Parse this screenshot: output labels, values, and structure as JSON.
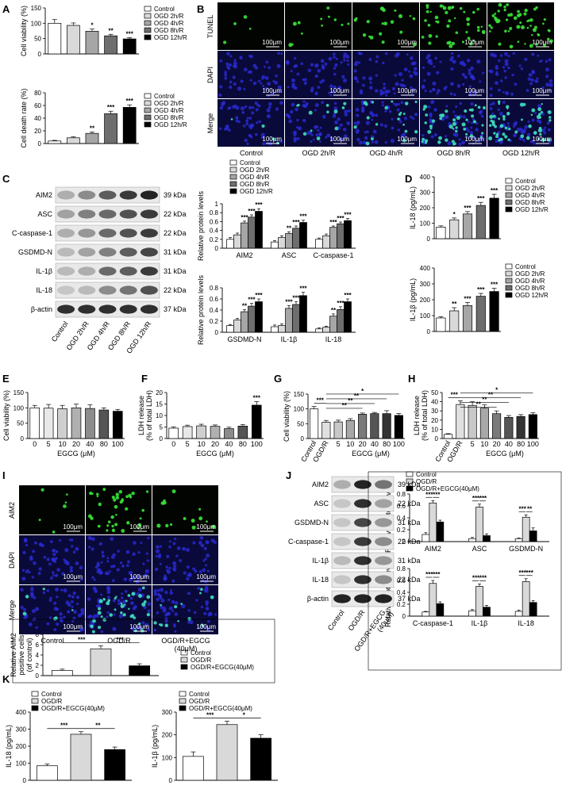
{
  "legend_groups": {
    "ogd5": [
      "Control",
      "OGD 2h/R",
      "OGD 4h/R",
      "OGD 8h/R",
      "OGD 12h/R"
    ],
    "ogd5b": [
      "Control",
      "OGD 2h/R",
      "OGD 4h/R",
      "OGD 8h/R",
      "OGD 12h/R"
    ],
    "ogd5c": [
      "Control",
      "OGD 2h/R",
      "OGD 4h/R",
      "OGD 8h/R",
      "OGD 12h/R"
    ],
    "ogd5d": [
      "Control",
      "OGD 2h/R",
      "OGD 4h/R",
      "OGD 8h/R",
      "OGD 12h/R"
    ],
    "egcg3": [
      "Control",
      "OGD/R",
      "OGD/R+EGCG(40µM)"
    ]
  },
  "colors": {
    "c0": "#ffffff",
    "c1": "#d9d9d9",
    "c2": "#a6a6a6",
    "c3": "#6e6e6e",
    "c4": "#000000",
    "fluor_green": "#39e639",
    "dapi_blue": "#2a2ad8"
  },
  "panel_B": {
    "row_labels": [
      "TUNEL",
      "DAPI",
      "Merge"
    ],
    "col_labels": [
      "Control",
      "OGD 2h/R",
      "OGD 4h/R",
      "OGD 8h/R",
      "OGD 12h/R"
    ],
    "scale": "100μm"
  },
  "panel_I": {
    "row_labels": [
      "AIM2",
      "DAPI",
      "Merge"
    ],
    "col_labels": [
      "Control",
      "OGD/R",
      "OGD/R+EGCG",
      "(40μM)"
    ],
    "scale": "100μm"
  },
  "panel_C": {
    "bands": [
      "AIM2",
      "ASC",
      "C-caspase-1",
      "GSDMD-N",
      "IL-1β",
      "IL-18",
      "β-actin"
    ],
    "kda": [
      "39 kDa",
      "22 kDa",
      "22 kDa",
      "31 kDa",
      "31 kDa",
      "22 kDa",
      "37 kDa"
    ],
    "lanes": [
      "Control",
      "OGD 2h/R",
      "OGD 4h/R",
      "OGD 8h/R",
      "OGD 12h/R"
    ]
  },
  "panel_J": {
    "bands": [
      "AIM2",
      "ASC",
      "GSDMD-N",
      "C-caspase-1",
      "IL-1β",
      "IL-18",
      "β-actin"
    ],
    "kda": [
      "39 kDa",
      "22 kDa",
      "31 kDa",
      "22 kDa",
      "31 kDa",
      "22 kDa",
      "37 kDa"
    ],
    "lanes": [
      "Control",
      "OGD/R",
      "OGD/R+EGCG",
      "(40μM)"
    ]
  },
  "chart_data": [
    {
      "id": "A1",
      "panel": "A",
      "type": "bar",
      "ylabel": "Cell viability (%)",
      "ylim": [
        0,
        150
      ],
      "yticks": [
        0,
        50,
        100,
        150
      ],
      "values": [
        100,
        93,
        74,
        59,
        49
      ],
      "errors": [
        12,
        8,
        7,
        5,
        4
      ],
      "sig": [
        "",
        "",
        "*",
        "**",
        "***"
      ],
      "legend": "ogd5"
    },
    {
      "id": "A2",
      "panel": "",
      "type": "bar",
      "ylabel": "Cell death rate (%)",
      "ylim": [
        0,
        80
      ],
      "yticks": [
        0,
        20,
        40,
        60,
        80
      ],
      "values": [
        4,
        9,
        16,
        47,
        57
      ],
      "errors": [
        1,
        1.5,
        2,
        4,
        4
      ],
      "sig": [
        "",
        "",
        "**",
        "***",
        "***"
      ],
      "legend": "ogd5b"
    },
    {
      "id": "C1",
      "panel": "",
      "type": "bar",
      "ylabel": "Relative protein levels",
      "ylim": [
        0,
        1.0
      ],
      "yticks": [
        0,
        0.2,
        0.4,
        0.6,
        0.8,
        1.0
      ],
      "groups": [
        "AIM2",
        "ASC",
        "C-caspase-1"
      ],
      "values": [
        [
          0.2,
          0.3,
          0.57,
          0.7,
          0.83
        ],
        [
          0.14,
          0.24,
          0.33,
          0.45,
          0.58
        ],
        [
          0.2,
          0.28,
          0.47,
          0.55,
          0.62
        ]
      ],
      "errors": [
        [
          0.04,
          0.04,
          0.04,
          0.05,
          0.06
        ],
        [
          0.03,
          0.04,
          0.04,
          0.05,
          0.05
        ],
        [
          0.03,
          0.04,
          0.03,
          0.04,
          0.05
        ]
      ],
      "sig": [
        [
          "",
          "",
          "***",
          "***",
          "***"
        ],
        [
          "",
          "",
          "**",
          "***",
          "***"
        ],
        [
          "",
          "",
          "***",
          "***",
          "***"
        ]
      ],
      "legend": "ogd5c"
    },
    {
      "id": "C2",
      "panel": "",
      "type": "bar",
      "ylabel": "Relative protein levels",
      "ylim": [
        0,
        0.8
      ],
      "yticks": [
        0,
        0.2,
        0.4,
        0.6,
        0.8
      ],
      "groups": [
        "GSDMD-N",
        "IL-1β",
        "IL-18"
      ],
      "values": [
        [
          0.12,
          0.22,
          0.37,
          0.47,
          0.55
        ],
        [
          0.1,
          0.12,
          0.43,
          0.5,
          0.66
        ],
        [
          0.06,
          0.09,
          0.29,
          0.41,
          0.55
        ]
      ],
      "errors": [
        [
          0.02,
          0.03,
          0.04,
          0.05,
          0.05
        ],
        [
          0.03,
          0.03,
          0.05,
          0.05,
          0.06
        ],
        [
          0.02,
          0.02,
          0.04,
          0.05,
          0.05
        ]
      ],
      "sig": [
        [
          "",
          "",
          "**",
          "***",
          "***"
        ],
        [
          "",
          "",
          "***",
          "***",
          "***"
        ],
        [
          "",
          "",
          "**",
          "***",
          "***"
        ]
      ]
    },
    {
      "id": "D1",
      "panel": "D",
      "type": "bar",
      "ylabel": "IL-18 (pg/mL)",
      "ylim": [
        0,
        400
      ],
      "yticks": [
        0,
        100,
        200,
        300,
        400
      ],
      "values": [
        75,
        122,
        160,
        215,
        262
      ],
      "errors": [
        8,
        12,
        15,
        20,
        25
      ],
      "sig": [
        "",
        "*",
        "***",
        "***",
        "***"
      ],
      "legend": "ogd5"
    },
    {
      "id": "D2",
      "panel": "",
      "type": "bar",
      "ylabel": "IL-1β (pg/mL)",
      "ylim": [
        0,
        400
      ],
      "yticks": [
        0,
        100,
        200,
        300,
        400
      ],
      "values": [
        85,
        130,
        163,
        222,
        252
      ],
      "errors": [
        8,
        20,
        20,
        18,
        20
      ],
      "sig": [
        "",
        "**",
        "***",
        "***",
        "***"
      ],
      "legend": "ogd5d"
    },
    {
      "id": "E",
      "panel": "E",
      "type": "bar",
      "ylabel": "Cell viability (%)",
      "xlabel": "EGCG (μM)",
      "ylim": [
        0,
        150
      ],
      "yticks": [
        0,
        50,
        100,
        150
      ],
      "categories": [
        "0",
        "5",
        "10",
        "20",
        "40",
        "80",
        "100"
      ],
      "values": [
        100,
        99,
        97,
        100,
        98,
        93,
        89
      ],
      "errors": [
        8,
        12,
        11,
        12,
        12,
        7,
        6
      ],
      "sig": [
        "",
        "",
        "",
        "",
        "",
        "",
        ""
      ]
    },
    {
      "id": "F",
      "panel": "F",
      "type": "bar",
      "ylabel": "LDH release (% of total LDH)",
      "xlabel": "EGCG (μM)",
      "ylim": [
        0,
        20
      ],
      "yticks": [
        0,
        5,
        10,
        15,
        20
      ],
      "categories": [
        "0",
        "5",
        "10",
        "20",
        "40",
        "80",
        "100"
      ],
      "values": [
        4.5,
        5.2,
        5.5,
        5.3,
        4.3,
        5.4,
        14.5
      ],
      "errors": [
        0.6,
        0.6,
        0.7,
        0.6,
        0.6,
        0.7,
        1.5
      ],
      "sig": [
        "",
        "",
        "",
        "",
        "",
        "",
        "***"
      ]
    },
    {
      "id": "G",
      "panel": "G",
      "type": "bar",
      "ylabel": "Cell viability (%)",
      "xlabel": "EGCG (μM)",
      "ylim": [
        0,
        150
      ],
      "yticks": [
        0,
        50,
        100,
        150
      ],
      "categories": [
        "Control",
        "OGD/R",
        "5",
        "10",
        "20",
        "40",
        "80",
        "100"
      ],
      "values": [
        100,
        55,
        56,
        61,
        82,
        84,
        84,
        78
      ],
      "errors": [
        8,
        6,
        6,
        6,
        4,
        4,
        10,
        6
      ],
      "brackets": [
        [
          0,
          1,
          "***"
        ],
        [
          1,
          4,
          "**"
        ],
        [
          1,
          5,
          "**"
        ],
        [
          1,
          6,
          "**"
        ],
        [
          1,
          7,
          "*"
        ]
      ]
    },
    {
      "id": "H",
      "panel": "H",
      "type": "bar",
      "ylabel": "LDH release (% of total LDH)",
      "xlabel": "EGCG (μM)",
      "ylim": [
        0,
        50
      ],
      "yticks": [
        0,
        10,
        20,
        30,
        40,
        50
      ],
      "categories": [
        "Control",
        "OGD/R",
        "5",
        "10",
        "20",
        "40",
        "80",
        "100"
      ],
      "values": [
        4.5,
        37,
        36,
        33,
        27,
        23,
        24,
        26
      ],
      "errors": [
        0.8,
        4,
        4,
        3.5,
        3,
        2,
        2,
        2
      ],
      "brackets": [
        [
          0,
          1,
          "***"
        ],
        [
          1,
          4,
          "**"
        ],
        [
          1,
          5,
          "**"
        ],
        [
          1,
          6,
          "**"
        ],
        [
          1,
          7,
          "*"
        ]
      ]
    },
    {
      "id": "I2",
      "panel": "",
      "type": "bar",
      "ylabel": "Relative AIM2 positive cells (of control)",
      "ylim": [
        0,
        8
      ],
      "yticks": [
        0,
        2,
        4,
        6,
        8
      ],
      "values": [
        1,
        5.2,
        1.9
      ],
      "errors": [
        0.25,
        0.6,
        0.4
      ],
      "colors3": true,
      "brackets": [
        [
          0,
          1,
          "***"
        ],
        [
          1,
          2,
          "***"
        ]
      ],
      "legend": "egcg3"
    },
    {
      "id": "J1",
      "panel": "",
      "type": "bar",
      "ylabel": "Relative protein levels",
      "ylim": [
        0,
        0.8
      ],
      "yticks": [
        0,
        0.2,
        0.4,
        0.6,
        0.8
      ],
      "groups": [
        "AIM2",
        "ASC",
        "GSDMD-N"
      ],
      "values": [
        [
          0.12,
          0.65,
          0.33
        ],
        [
          0.05,
          0.58,
          0.1
        ],
        [
          0.05,
          0.41,
          0.18
        ]
      ],
      "errors": [
        [
          0.03,
          0.04,
          0.03
        ],
        [
          0.02,
          0.05,
          0.03
        ],
        [
          0.01,
          0.04,
          0.05
        ]
      ],
      "gbrackets": [
        [
          "***",
          "***"
        ],
        [
          "***",
          "***"
        ],
        [
          "***",
          "**"
        ]
      ],
      "colors3": true,
      "legend": "egcg3"
    },
    {
      "id": "J2",
      "panel": "",
      "type": "bar",
      "ylabel": "Relative protein levels",
      "ylim": [
        0,
        0.8
      ],
      "yticks": [
        0,
        0.2,
        0.4,
        0.6,
        0.8
      ],
      "groups": [
        "C-caspase-1",
        "IL-1β",
        "IL-18"
      ],
      "values": [
        [
          0.07,
          0.55,
          0.21
        ],
        [
          0.09,
          0.5,
          0.15
        ],
        [
          0.08,
          0.58,
          0.23
        ]
      ],
      "errors": [
        [
          0.01,
          0.05,
          0.03
        ],
        [
          0.02,
          0.04,
          0.03
        ],
        [
          0.02,
          0.05,
          0.03
        ]
      ],
      "gbrackets": [
        [
          "***",
          "***"
        ],
        [
          "***",
          "***"
        ],
        [
          "***",
          "***"
        ]
      ],
      "colors3": true
    },
    {
      "id": "K1",
      "panel": "K",
      "type": "bar",
      "ylabel": "IL-18 (pg/mL)",
      "ylim": [
        0,
        400
      ],
      "yticks": [
        0,
        100,
        200,
        300,
        400
      ],
      "values": [
        85,
        270,
        180
      ],
      "errors": [
        10,
        15,
        15
      ],
      "colors3": true,
      "brackets": [
        [
          0,
          1,
          "***"
        ],
        [
          1,
          2,
          "**"
        ]
      ],
      "legend": "egcg3"
    },
    {
      "id": "K2",
      "panel": "",
      "type": "bar",
      "ylabel": "IL-1β (pg/mL)",
      "ylim": [
        0,
        300
      ],
      "yticks": [
        0,
        100,
        200,
        300
      ],
      "values": [
        105,
        245,
        185
      ],
      "errors": [
        20,
        15,
        15
      ],
      "colors3": true,
      "brackets": [
        [
          0,
          1,
          "***"
        ],
        [
          1,
          2,
          "*"
        ]
      ],
      "legend": "egcg3"
    }
  ]
}
